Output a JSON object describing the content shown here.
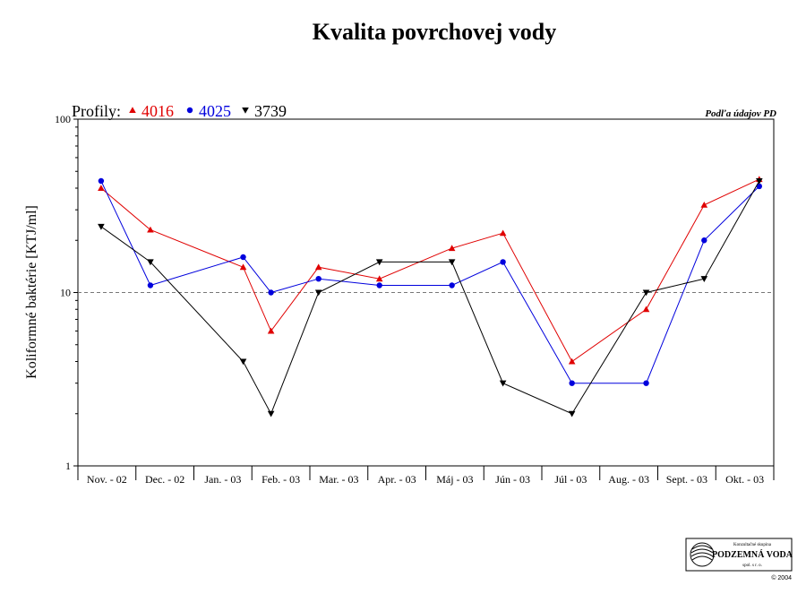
{
  "chart_data": {
    "type": "line",
    "title": "Kvalita povrchovej vody",
    "ylabel": "Koliformné baktérie [KTJ/ml]",
    "xlabel": "",
    "y_scale": "log",
    "ylim": [
      1,
      100
    ],
    "y_ticks": [
      "1",
      "10",
      "100"
    ],
    "reference_line": 10,
    "legend_title": "Profily:",
    "legend_position": "top-left",
    "grid": false,
    "source_note": "Podľa údajov PD",
    "categories": [
      "Nov. - 02",
      "Dec. - 02",
      "Jan. - 03",
      "Feb. - 03",
      "Mar. - 03",
      "Apr. - 03",
      "Máj - 03",
      "Jún - 03",
      "Júl - 03",
      "Aug. - 03",
      "Sept. - 03",
      "Okt. - 03"
    ],
    "series": [
      {
        "name": "4016",
        "color": "#e00000",
        "marker": "triangle-up",
        "points": [
          {
            "x": 0.4,
            "y": 40
          },
          {
            "x": 1.25,
            "y": 23
          },
          {
            "x": 2.85,
            "y": 14
          },
          {
            "x": 3.33,
            "y": 6
          },
          {
            "x": 4.15,
            "y": 14
          },
          {
            "x": 5.2,
            "y": 12
          },
          {
            "x": 6.45,
            "y": 18
          },
          {
            "x": 7.33,
            "y": 22
          },
          {
            "x": 8.52,
            "y": 4
          },
          {
            "x": 9.8,
            "y": 8
          },
          {
            "x": 10.8,
            "y": 32
          },
          {
            "x": 11.75,
            "y": 45
          }
        ]
      },
      {
        "name": "4025",
        "color": "#0000dd",
        "marker": "circle",
        "points": [
          {
            "x": 0.4,
            "y": 44
          },
          {
            "x": 1.25,
            "y": 11
          },
          {
            "x": 2.85,
            "y": 16
          },
          {
            "x": 3.33,
            "y": 10
          },
          {
            "x": 4.15,
            "y": 12
          },
          {
            "x": 5.2,
            "y": 11
          },
          {
            "x": 6.45,
            "y": 11
          },
          {
            "x": 7.33,
            "y": 15
          },
          {
            "x": 8.52,
            "y": 3
          },
          {
            "x": 9.8,
            "y": 3
          },
          {
            "x": 10.8,
            "y": 20
          },
          {
            "x": 11.75,
            "y": 41
          }
        ]
      },
      {
        "name": "3739",
        "color": "#000000",
        "marker": "triangle-down",
        "points": [
          {
            "x": 0.4,
            "y": 24
          },
          {
            "x": 1.25,
            "y": 15
          },
          {
            "x": 2.85,
            "y": 4
          },
          {
            "x": 3.33,
            "y": 2
          },
          {
            "x": 4.15,
            "y": 10
          },
          {
            "x": 5.2,
            "y": 15
          },
          {
            "x": 6.45,
            "y": 15
          },
          {
            "x": 7.33,
            "y": 3
          },
          {
            "x": 8.52,
            "y": 2
          },
          {
            "x": 9.8,
            "y": 10
          },
          {
            "x": 10.8,
            "y": 12
          },
          {
            "x": 11.75,
            "y": 44
          }
        ]
      }
    ]
  },
  "logo": {
    "line1": "Konzultačné skupina",
    "line2": "PODZEMNÁ VODA",
    "line3": "spol. s r. o.",
    "copyright": "© 2004"
  }
}
